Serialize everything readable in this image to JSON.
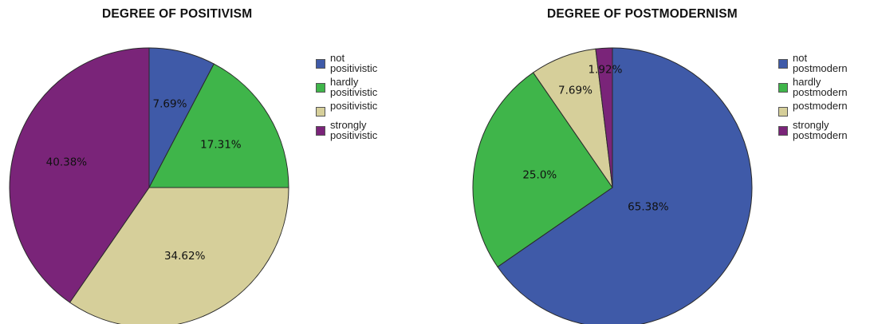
{
  "chart_data": [
    {
      "type": "pie",
      "title": "DEGREE OF POSITIVISM",
      "legend_position": "right",
      "slices": [
        {
          "name": "not\npositivistic",
          "value": 7.69,
          "label": "7.69%",
          "color": "#3f5aa8"
        },
        {
          "name": "hardly\npositivistic",
          "value": 17.31,
          "label": "17.31%",
          "color": "#3fb54a"
        },
        {
          "name": "positivistic",
          "value": 34.62,
          "label": "34.62%",
          "color": "#d6cf9a"
        },
        {
          "name": "strongly\npositivistic",
          "value": 40.38,
          "label": "40.38%",
          "color": "#7a2479"
        }
      ]
    },
    {
      "type": "pie",
      "title": "DEGREE OF POSTMODERNISM",
      "legend_position": "right",
      "slices": [
        {
          "name": "not\npostmodern",
          "value": 65.38,
          "label": "65.38%",
          "color": "#3f5aa8"
        },
        {
          "name": "hardly\npostmodern",
          "value": 25.0,
          "label": "25.0%",
          "color": "#3fb54a"
        },
        {
          "name": "postmodern",
          "value": 7.69,
          "label": "7.69%",
          "color": "#d6cf9a"
        },
        {
          "name": "strongly\npostmodern",
          "value": 1.92,
          "label": "1.92%",
          "color": "#7a2479"
        }
      ]
    }
  ]
}
